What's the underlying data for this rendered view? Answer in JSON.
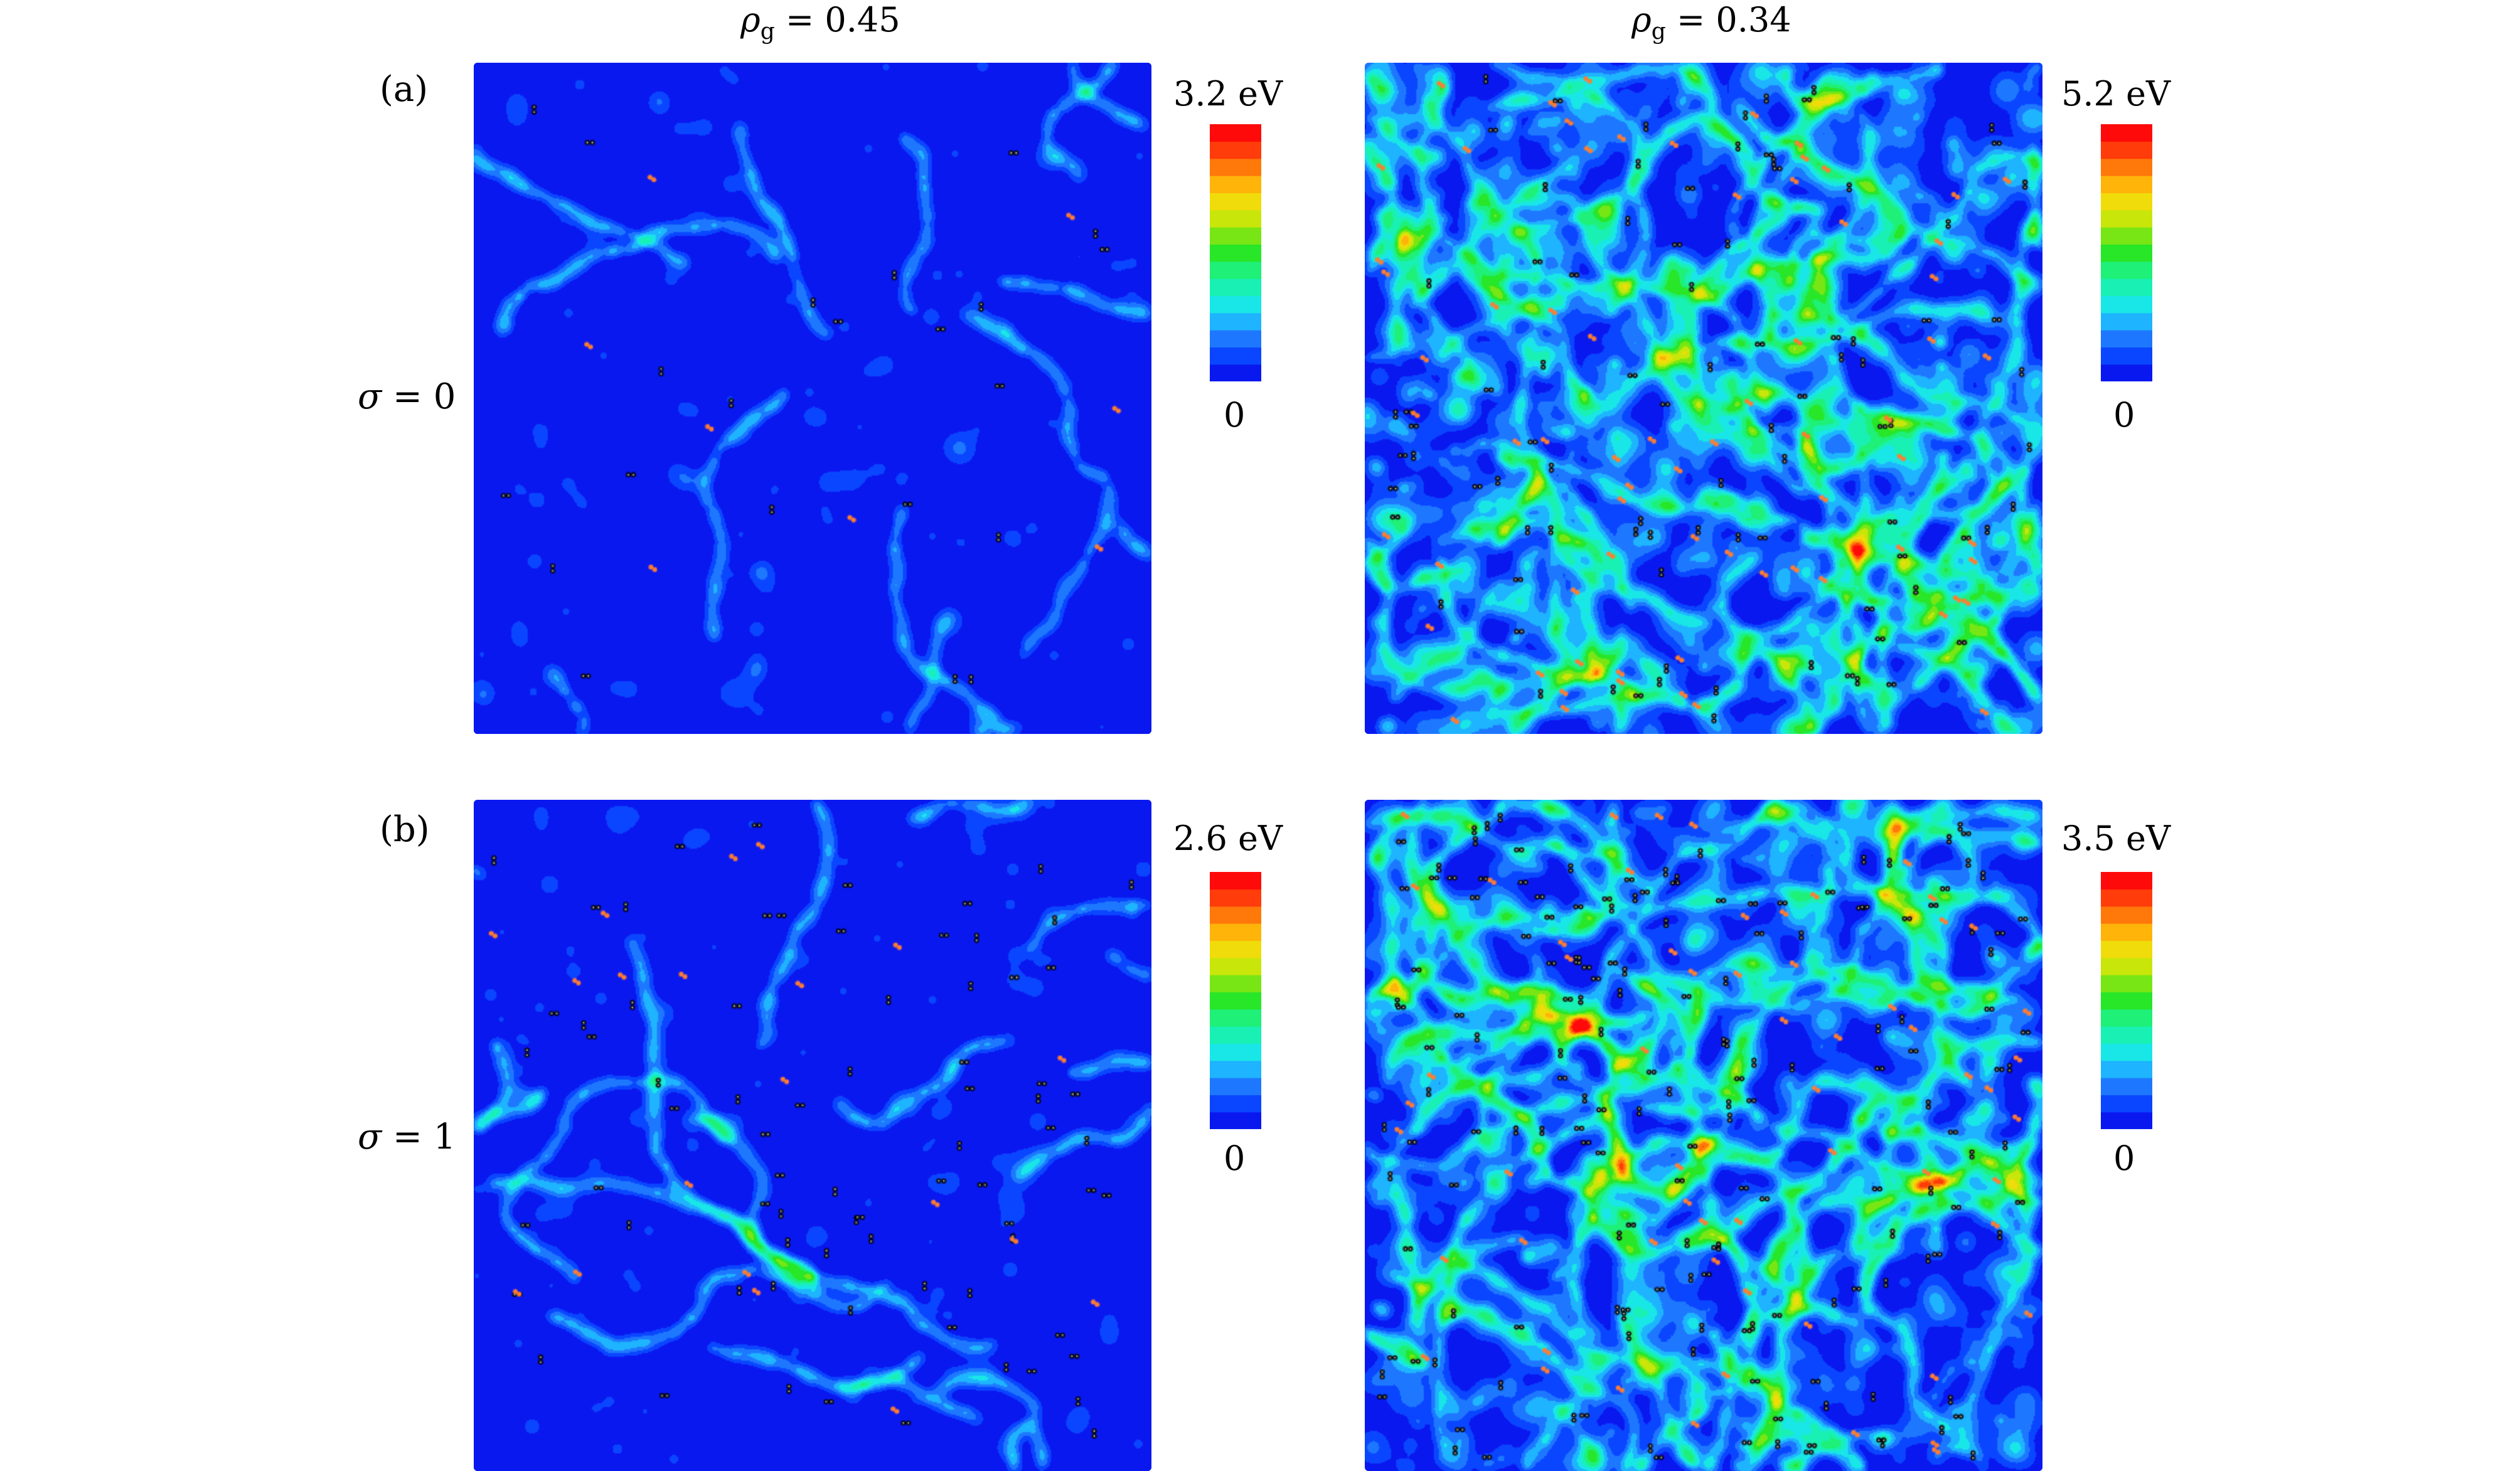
{
  "figure": {
    "columns": [
      {
        "symbol": "ρ",
        "sub": "g",
        "eq": " = ",
        "value": "0.45"
      },
      {
        "symbol": "ρ",
        "sub": "g",
        "eq": " = ",
        "value": "0.34"
      }
    ],
    "rows": [
      {
        "panel_label": "(a)",
        "symbol": "σ",
        "eq": " = ",
        "value": "0"
      },
      {
        "panel_label": "(b)",
        "symbol": "σ",
        "eq": " = ",
        "value": "1"
      }
    ],
    "colorbars": [
      {
        "max": "3.2 eV",
        "min": "0"
      },
      {
        "max": "5.2 eV",
        "min": "0"
      },
      {
        "max": "2.6 eV",
        "min": "0"
      },
      {
        "max": "3.5 eV",
        "min": "0"
      }
    ],
    "colormap": [
      "#0a18f0",
      "#0a46ff",
      "#1e78ff",
      "#1eb4ff",
      "#19e6e6",
      "#19f0b4",
      "#1ef078",
      "#28e628",
      "#78e614",
      "#c8e60a",
      "#f0dc0a",
      "#ffb40a",
      "#ff780a",
      "#ff3c0a",
      "#ff0a0a"
    ],
    "background_color": "#0a18f0",
    "vacancy_marker_color": "#000000",
    "interstitial_marker_color": "#ff7d32"
  }
}
